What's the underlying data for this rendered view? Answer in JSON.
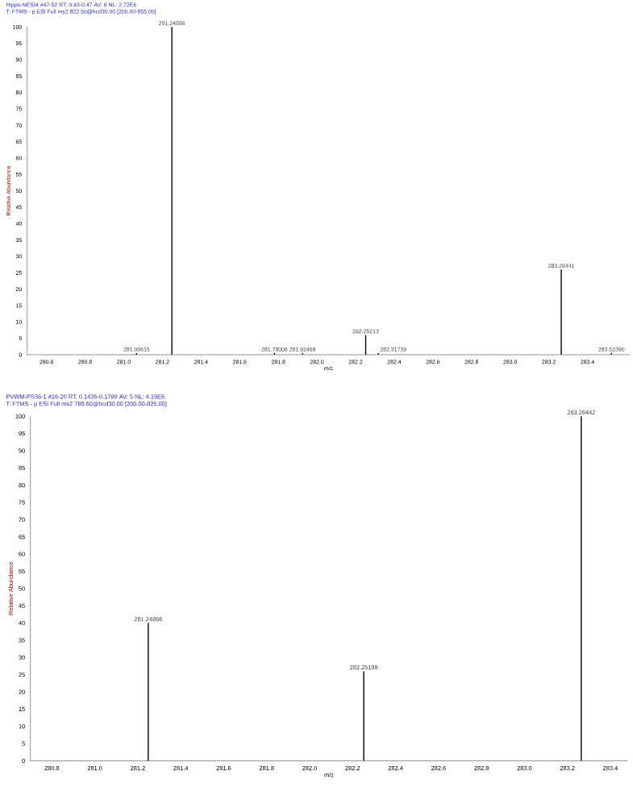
{
  "chart_data": [
    {
      "type": "bar",
      "title": "Hippo-NESI4 #47-52  RT: 0.43-0.47  AV: 6  NL: 2.72E6",
      "subtitle": "T: FTMS - p ESI Full ms2 822.50@hcd30.00 [200.00-855.00]",
      "xlabel": "m/z",
      "ylabel": "Relative Abundance",
      "x": [
        281.06615,
        281.24886,
        281.78006,
        281.92468,
        282.25213,
        282.31739,
        283.26441,
        283.5239
      ],
      "series": [
        {
          "color": "#000000",
          "values": [
            0.5,
            100,
            0.5,
            0.5,
            6,
            0.5,
            26,
            0.5
          ]
        }
      ],
      "xlim": [
        280.5,
        283.62
      ],
      "xticks": [
        280.6,
        280.8,
        {
          "value": 281,
          "label": "281.0"
        },
        281.2,
        281.4,
        281.6,
        281.8,
        {
          "value": 282,
          "label": "282.0"
        },
        282.2,
        282.4,
        282.6,
        282.8,
        {
          "value": 283,
          "label": "283.0"
        },
        283.2,
        283.4
      ],
      "ylim": [
        0,
        100
      ],
      "yticks": [
        0,
        5,
        10,
        15,
        20,
        25,
        30,
        35,
        40,
        45,
        50,
        55,
        60,
        65,
        70,
        75,
        80,
        85,
        90,
        95,
        100
      ],
      "annotations": [
        {
          "text": "281.06615",
          "x": 281.06615,
          "y": 0.5
        },
        {
          "text": "281.24886",
          "x": 281.24886,
          "y": 100
        },
        {
          "text": "281.78006",
          "x": 281.78006,
          "y": 0.5
        },
        {
          "text": "281.92468",
          "x": 281.92468,
          "y": 0.5
        },
        {
          "text": "282.25213",
          "x": 282.25213,
          "y": 6
        },
        {
          "text": "282.31739",
          "x": 282.31739,
          "y": 0.5
        },
        {
          "text": "283.26441",
          "x": 283.26441,
          "y": 26
        },
        {
          "text": "283.52390",
          "x": 283.5239,
          "y": 0.5
        }
      ]
    },
    {
      "type": "bar",
      "title": "PVWM-PS36-1 #16-20  RT: 0.1435-0.1799  AV: 5  NL: 4.19E6",
      "subtitle": "T: FTMS - p ESI Full ms2 789.60@hcd30.00 [200.00-825.00]",
      "xlabel": "m/z",
      "ylabel": "Relative Abundance",
      "x": [
        281.24866,
        282.25199,
        283.26442
      ],
      "series": [
        {
          "color": "#000000",
          "values": [
            40,
            26,
            100
          ]
        }
      ],
      "xlim": [
        280.7,
        283.48
      ],
      "xticks": [
        280.8,
        {
          "value": 281,
          "label": "281.0"
        },
        281.2,
        281.4,
        281.6,
        281.8,
        {
          "value": 282,
          "label": "282.0"
        },
        282.2,
        282.4,
        282.6,
        282.8,
        {
          "value": 283,
          "label": "283.0"
        },
        283.2,
        283.4
      ],
      "ylim": [
        0,
        100
      ],
      "yticks": [
        0,
        5,
        10,
        15,
        20,
        25,
        30,
        35,
        40,
        45,
        50,
        55,
        60,
        65,
        70,
        75,
        80,
        85,
        90,
        95,
        100
      ],
      "annotations": [
        {
          "text": "281.24866",
          "x": 281.24866,
          "y": 40
        },
        {
          "text": "282.25199",
          "x": 282.25199,
          "y": 26
        },
        {
          "text": "283.26442",
          "x": 283.26442,
          "y": 100
        }
      ]
    }
  ]
}
